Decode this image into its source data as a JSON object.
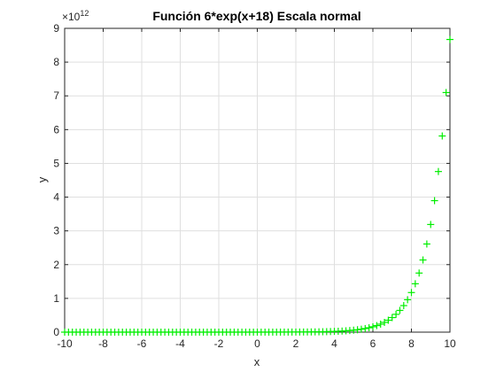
{
  "chart_data": {
    "type": "scatter",
    "title": "Función 6*exp(x+18) Escala normal",
    "xlabel": "x",
    "ylabel": "y",
    "exponent_base": "×10",
    "exponent_power": "12",
    "xlim": [
      -10,
      10
    ],
    "ylim": [
      0,
      9
    ],
    "xticks": [
      -10,
      -8,
      -6,
      -4,
      -2,
      0,
      2,
      4,
      6,
      8,
      10
    ],
    "yticks": [
      0,
      1,
      2,
      3,
      4,
      5,
      6,
      7,
      8,
      9
    ],
    "y_scale_factor": 1000000000000.0,
    "grid": true,
    "marker": "+",
    "color": "#00ee00",
    "series": [
      {
        "x": [
          -10,
          -9.8,
          -9.6,
          -9.4,
          -9.2,
          -9,
          -8.8,
          -8.6,
          -8.4,
          -8.2,
          -8,
          -7.8,
          -7.6,
          -7.4,
          -7.2,
          -7,
          -6.8,
          -6.6,
          -6.4,
          -6.2,
          -6,
          -5.8,
          -5.6,
          -5.4,
          -5.2,
          -5,
          -4.8,
          -4.6,
          -4.4,
          -4.2,
          -4,
          -3.8,
          -3.6,
          -3.4,
          -3.2,
          -3,
          -2.8,
          -2.6,
          -2.4,
          -2.2,
          -2,
          -1.8,
          -1.6,
          -1.4,
          -1.2,
          -1,
          -0.8,
          -0.6,
          -0.4,
          -0.2,
          0,
          0.2,
          0.4,
          0.6,
          0.8,
          1,
          1.2,
          1.4,
          1.6,
          1.8,
          2,
          2.2,
          2.4,
          2.6,
          2.8,
          3,
          3.2,
          3.4,
          3.6,
          3.8,
          4,
          4.2,
          4.4,
          4.6,
          4.8,
          5,
          5.2,
          5.4,
          5.6,
          5.8,
          6,
          6.2,
          6.4,
          6.6,
          6.8,
          7,
          7.2,
          7.4,
          7.6,
          7.8,
          8,
          8.2,
          8.4,
          8.6,
          8.8,
          9,
          9.2,
          9.4,
          9.6,
          9.8,
          10
        ],
        "y": [
          1.79e-08,
          2.18e-08,
          2.67e-08,
          3.26e-08,
          3.98e-08,
          4.86e-08,
          5.93e-08,
          7.25e-08,
          8.85e-08,
          1.081e-07,
          1.32e-07,
          1.613e-07,
          1.97e-07,
          2.406e-07,
          2.938e-07,
          3.589e-07,
          4.384e-07,
          5.354e-07,
          6.54e-07,
          7.988e-07,
          9.756e-07,
          1.1916e-06,
          1.4555e-06,
          1.7777e-06,
          2.1713e-06,
          2.6521e-06,
          3.2393e-06,
          3.9565e-06,
          4.8325e-06,
          5.9024e-06,
          7.2092e-06,
          8.8054e-06,
          1.0755e-05,
          1.31361e-05,
          1.60444e-05,
          1.95967e-05,
          2.39355e-05,
          2.92349e-05,
          3.57076e-05,
          4.36133e-05,
          5.32694e-05,
          6.50633e-05,
          7.94686e-05,
          9.70632e-05,
          0.0001185533,
          0.0001448014,
          0.0001768609,
          0.0002160184,
          0.0002638452,
          0.0003222614,
          0.0003936118,
          0.0004807595,
          0.000587202,
          0.0007172112,
          0.0008760041,
          0.0010699547,
          0.0013068462,
          0.0015961849,
          0.0019495842,
          0.0023812264,
          0.0029084342,
          0.0035523687,
          0.0043388735,
          0.0052995111,
          0.0064728358,
          0.0079059405,
          0.0096563336,
          0.0117942709,
          0.0144055563,
          0.0175949817,
          0.0214905542,
          0.0262486186,
          0.0320601446,
          0.0391583591,
          0.0478281325,
          0.058417312,
          0.071351004,
          0.087148223,
          0.106443,
          0.13001,
          0.158795,
          0.193953,
          0.236895,
          0.289345,
          0.353407,
          0.431652,
          0.52722,
          0.643947,
          0.786519,
          0.960657,
          1.17335,
          1.43313,
          1.75043,
          2.13798,
          2.61134,
          3.18949,
          3.89566,
          4.75816,
          5.81162,
          7.09833,
          8.66993
        ]
      }
    ]
  }
}
